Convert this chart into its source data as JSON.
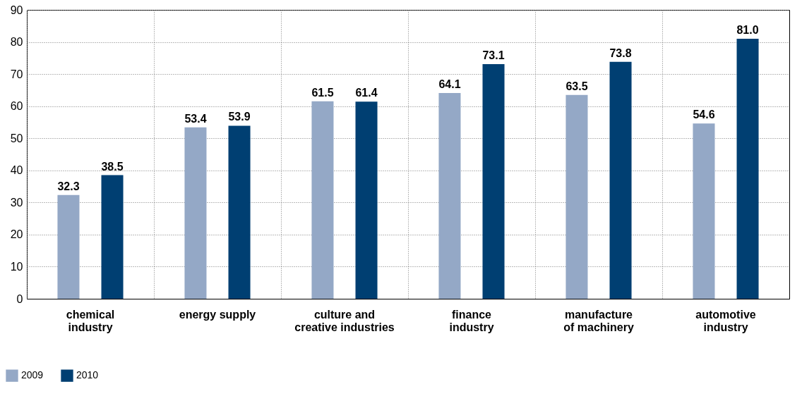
{
  "chart_data": {
    "type": "bar",
    "categories": [
      "chemical industry",
      "energy supply",
      "culture and creative industries",
      "finance industry",
      "manufacture of machinery",
      "automotive industry"
    ],
    "series": [
      {
        "name": "2009",
        "color": "#94a8c6",
        "values": [
          32.3,
          53.4,
          61.5,
          64.1,
          63.5,
          54.6
        ],
        "value_labels": [
          "32.3",
          "53.4",
          "61.5",
          "64.1",
          "63.5",
          "54.6"
        ]
      },
      {
        "name": "2010",
        "color": "#003f72",
        "values": [
          38.5,
          53.9,
          61.4,
          73.1,
          73.8,
          81.0
        ],
        "value_labels": [
          "38.5",
          "53.9",
          "61.4",
          "73.1",
          "73.8",
          "81.0"
        ]
      }
    ],
    "ylim": [
      0,
      90
    ],
    "yticks": [
      0,
      10,
      20,
      30,
      40,
      50,
      60,
      70,
      80,
      90
    ],
    "grid": true,
    "legend": "bottom left"
  }
}
